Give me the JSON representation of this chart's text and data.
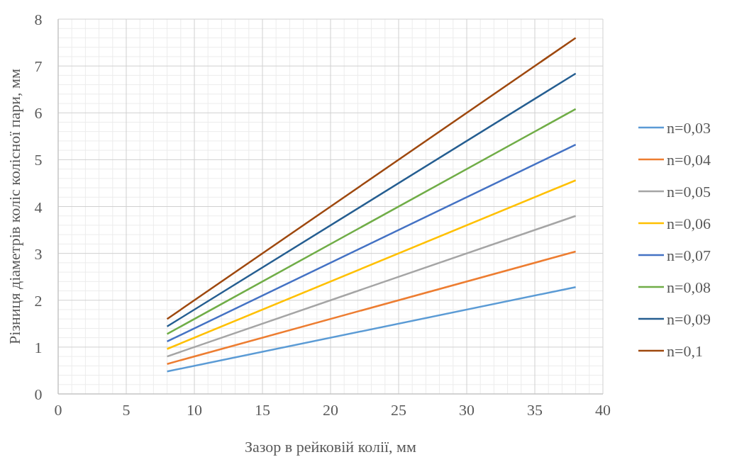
{
  "chart_data": {
    "type": "line",
    "xlabel": "Зазор в рейковій колії, мм",
    "ylabel": "Різниця діаметрів коліс колісної пари, мм",
    "x": [
      8,
      38
    ],
    "xlim": [
      0,
      40
    ],
    "xticks": [
      0,
      5,
      10,
      15,
      20,
      25,
      30,
      35,
      40
    ],
    "ylim": [
      0,
      8
    ],
    "yticks": [
      0,
      1,
      2,
      3,
      4,
      5,
      6,
      7,
      8
    ],
    "grid": true,
    "legend": "right",
    "series": [
      {
        "name": "n=0,03",
        "color": "#5b9bd5",
        "values": [
          0.48,
          2.28
        ]
      },
      {
        "name": "n=0,04",
        "color": "#ed7d31",
        "values": [
          0.64,
          3.04
        ]
      },
      {
        "name": "n=0,05",
        "color": "#a5a5a5",
        "values": [
          0.8,
          3.8
        ]
      },
      {
        "name": "n=0,06",
        "color": "#ffc000",
        "values": [
          0.96,
          4.56
        ]
      },
      {
        "name": "n=0,07",
        "color": "#4472c4",
        "values": [
          1.12,
          5.32
        ]
      },
      {
        "name": "n=0,08",
        "color": "#70ad47",
        "values": [
          1.28,
          6.08
        ]
      },
      {
        "name": "n=0,09",
        "color": "#255e91",
        "values": [
          1.44,
          6.84
        ]
      },
      {
        "name": "n=0,1",
        "color": "#9e480e",
        "values": [
          1.6,
          7.6
        ]
      }
    ]
  }
}
